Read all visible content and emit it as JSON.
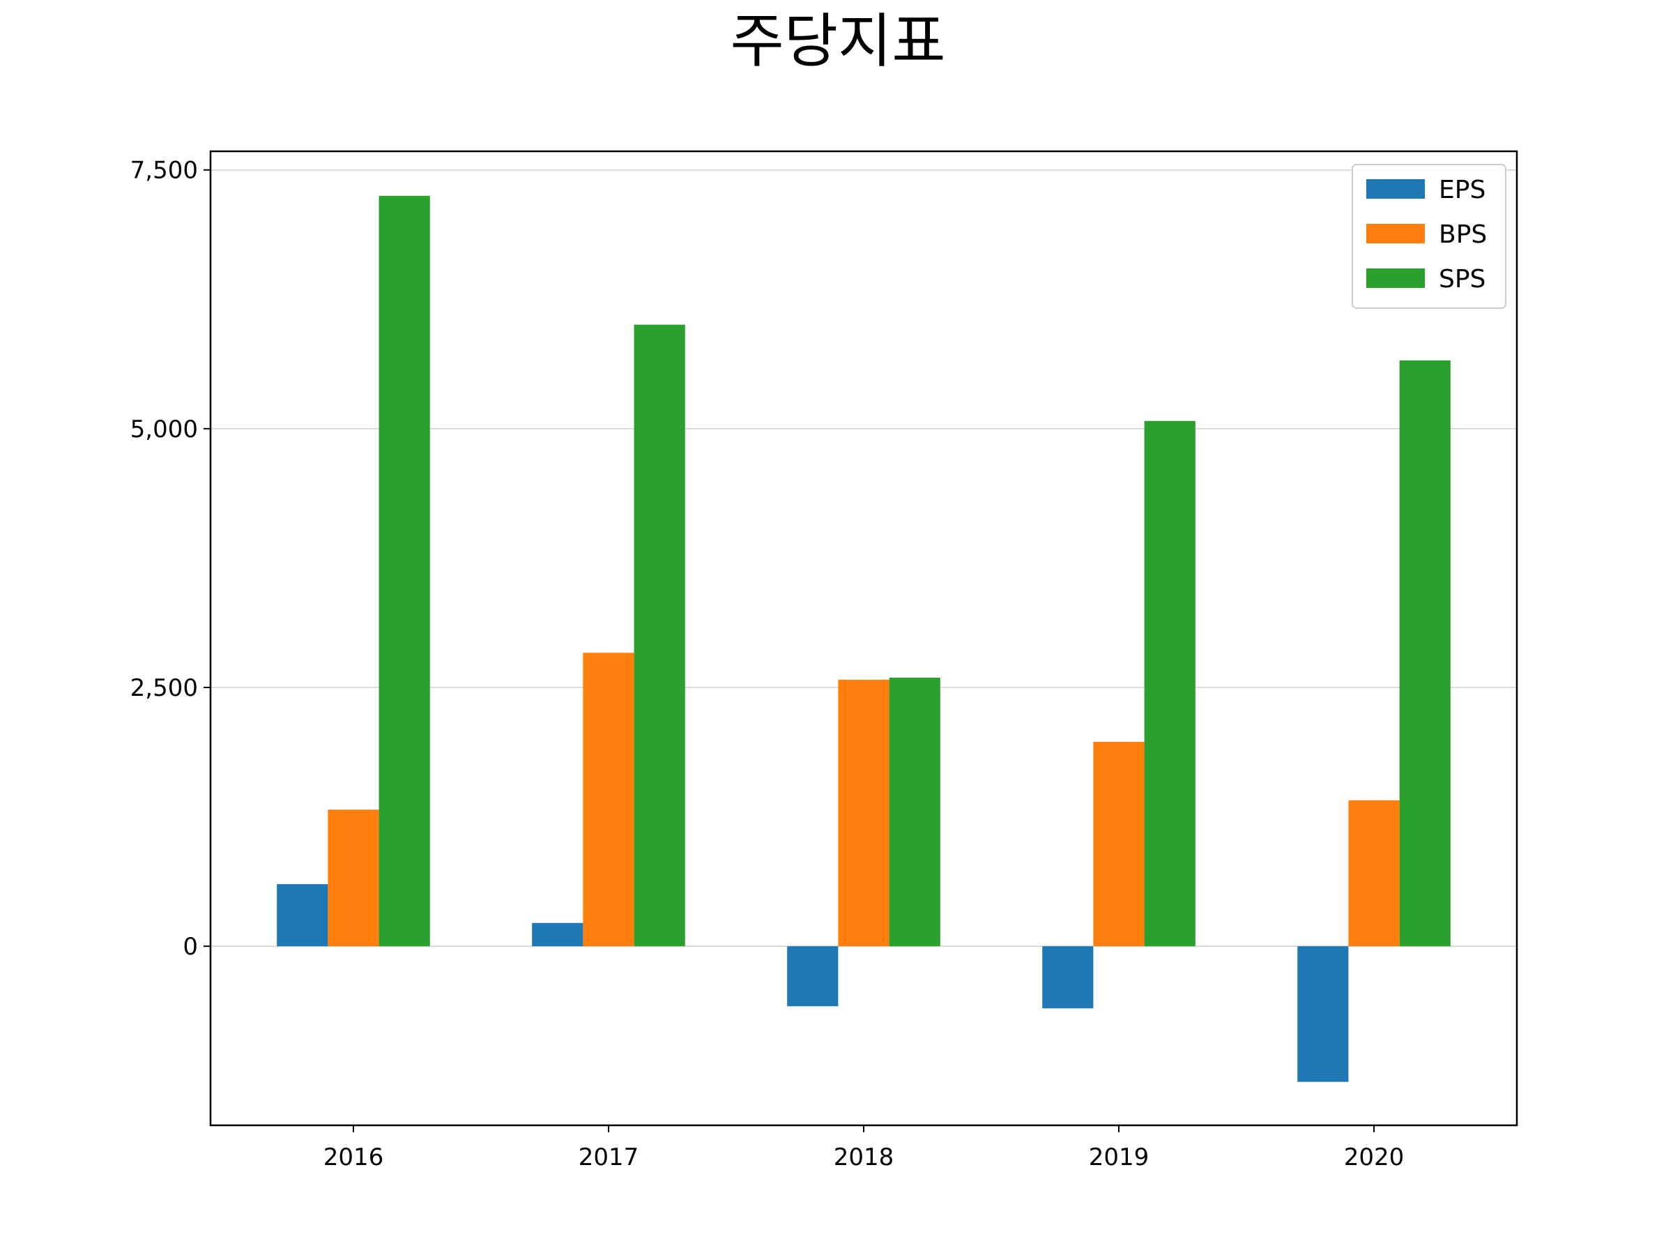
{
  "chart_data": {
    "type": "bar",
    "title": "주당지표",
    "xlabel": "",
    "ylabel": "",
    "categories": [
      "2016",
      "2017",
      "2018",
      "2019",
      "2020"
    ],
    "series": [
      {
        "name": "EPS",
        "color": "#1f77b4",
        "values": [
          600,
          225,
          -580,
          -600,
          -1310
        ]
      },
      {
        "name": "BPS",
        "color": "#ff7f0e",
        "values": [
          1320,
          2835,
          2575,
          1975,
          1410
        ]
      },
      {
        "name": "SPS",
        "color": "#2ca02c",
        "values": [
          7250,
          6005,
          2595,
          5075,
          5660
        ]
      }
    ],
    "ylim": [
      -1730,
      7680
    ],
    "yticks": [
      0,
      2500,
      5000,
      7500
    ],
    "ytick_labels": [
      "0",
      "2,500",
      "5,000",
      "7,500"
    ],
    "grid": "horizontal",
    "legend_position": "top-right"
  }
}
